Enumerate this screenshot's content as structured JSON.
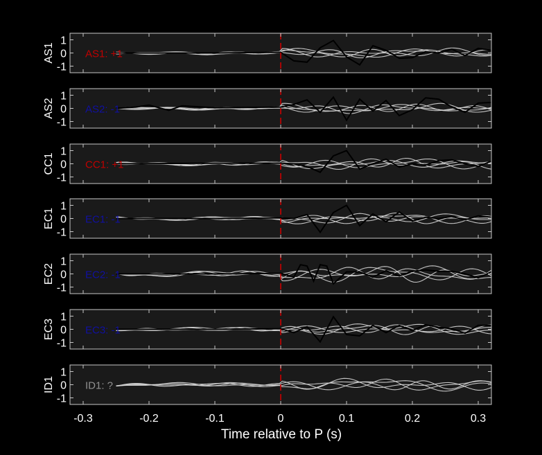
{
  "colors": {
    "background": "#000000",
    "axes_face": "#1a1a1a",
    "axes_edge": "#c8c8c8",
    "tick_text": "#ffffff",
    "trace_light": "#d8d8d8",
    "trace_dark": "#000000",
    "p_marker": "#cc0000",
    "label_positive": "#c00000",
    "label_negative": "#1010a0",
    "label_unknown": "#909090"
  },
  "chart_data": {
    "type": "line",
    "xlabel": "Time relative to P (s)",
    "xlim": [
      -0.32,
      0.32
    ],
    "ylim": [
      -1.5,
      1.5
    ],
    "x_ticks": [
      -0.3,
      -0.2,
      -0.1,
      0,
      0.1,
      0.2,
      0.3
    ],
    "x_tick_labels": [
      "-0.3",
      "-0.2",
      "-0.1",
      "0",
      "0.1",
      "0.2",
      "0.3"
    ],
    "y_ticks": [
      1,
      0,
      -1
    ],
    "y_tick_labels": [
      "1",
      "0",
      "-1"
    ],
    "p_marker_x": 0,
    "trace_start_x": -0.25,
    "panels": [
      {
        "station": "AS1",
        "label": "AS1: +1",
        "polarity": "positive",
        "dark_x": [
          -0.25,
          -0.1,
          0,
          0.02,
          0.04,
          0.06,
          0.08,
          0.1,
          0.12,
          0.14,
          0.16,
          0.18,
          0.2,
          0.22,
          0.24,
          0.26,
          0.28,
          0.3,
          0.32
        ],
        "dark_y": [
          0,
          0,
          0.05,
          -0.6,
          -0.7,
          0.4,
          0.95,
          -0.3,
          -0.9,
          0.55,
          0.2,
          -0.4,
          -0.35,
          0.1,
          0.0,
          0.3,
          -0.2,
          0.35,
          0.2
        ],
        "light_amp": 0.35
      },
      {
        "station": "AS2",
        "label": "AS2: -1",
        "polarity": "negative",
        "dark_x": [
          -0.25,
          -0.22,
          -0.2,
          -0.17,
          -0.15,
          -0.1,
          0,
          0.02,
          0.04,
          0.06,
          0.08,
          0.1,
          0.12,
          0.14,
          0.16,
          0.18,
          0.2,
          0.22,
          0.24,
          0.26,
          0.28,
          0.3,
          0.32
        ],
        "dark_y": [
          0,
          0.1,
          0.25,
          -0.15,
          0.2,
          0.05,
          0.1,
          0.3,
          0.65,
          -0.3,
          0.85,
          -0.9,
          0.7,
          -0.2,
          0.6,
          -0.55,
          -0.1,
          0.8,
          0.7,
          0.1,
          -0.3,
          0.4,
          0.45
        ],
        "light_amp": 0.35
      },
      {
        "station": "CC1",
        "label": "CC1: +1",
        "polarity": "positive",
        "dark_x": [
          -0.25,
          -0.1,
          0,
          0.02,
          0.04,
          0.06,
          0.08,
          0.1,
          0.12,
          0.14,
          0.16,
          0.18,
          0.2,
          0.22,
          0.24,
          0.26,
          0.28,
          0.3,
          0.32
        ],
        "dark_y": [
          0,
          0.05,
          0.05,
          0.0,
          -0.2,
          -0.65,
          0.6,
          1.0,
          -0.4,
          0.0,
          0.35,
          -0.25,
          0.0,
          -0.1,
          0.25,
          0.3,
          0.0,
          -0.2,
          0.2
        ],
        "light_amp": 0.4
      },
      {
        "station": "EC1",
        "label": "EC1: -1",
        "polarity": "negative",
        "dark_x": [
          -0.25,
          -0.1,
          0,
          0.02,
          0.04,
          0.06,
          0.08,
          0.1,
          0.12,
          0.14,
          0.16,
          0.18,
          0.2,
          0.22,
          0.24,
          0.26,
          0.28,
          0.3,
          0.32
        ],
        "dark_y": [
          0,
          0,
          0.05,
          0.0,
          0.3,
          -1.05,
          0.45,
          1.0,
          -0.55,
          0.35,
          -0.25,
          0.5,
          -0.2,
          0.1,
          0.0,
          0.15,
          -0.1,
          0.2,
          0.1
        ],
        "light_amp": 0.4
      },
      {
        "station": "EC2",
        "label": "EC2: -1",
        "polarity": "negative",
        "dark_x": [
          -0.25,
          -0.1,
          0,
          0.02,
          0.03,
          0.04,
          0.05,
          0.06,
          0.07,
          0.08,
          0.1,
          0.12,
          0.14,
          0.16,
          0.18,
          0.2,
          0.22,
          0.24,
          0.26,
          0.28,
          0.3,
          0.32
        ],
        "dark_y": [
          0,
          0,
          0.05,
          -0.25,
          0.7,
          0.6,
          -0.55,
          0.7,
          0.6,
          -0.75,
          0.15,
          0.15,
          -0.25,
          0.25,
          -0.15,
          0.2,
          0.3,
          0.2,
          0.2,
          0.0,
          -0.3,
          0.15
        ],
        "light_amp": 0.6
      },
      {
        "station": "EC3",
        "label": "EC3: -1",
        "polarity": "negative",
        "dark_x": [
          -0.25,
          -0.1,
          0,
          0.02,
          0.04,
          0.06,
          0.08,
          0.1,
          0.12,
          0.14,
          0.16,
          0.18,
          0.2,
          0.22,
          0.24,
          0.26,
          0.28,
          0.3,
          0.32
        ],
        "dark_y": [
          0,
          0,
          0.05,
          -0.25,
          0.2,
          -0.95,
          0.95,
          -0.4,
          -0.5,
          0.3,
          -0.25,
          0.3,
          -0.1,
          0.35,
          0.15,
          0.05,
          -0.3,
          0.3,
          0.3
        ],
        "light_amp": 0.4
      },
      {
        "station": "ID1",
        "label": "ID1: ?",
        "polarity": "unknown",
        "dark_x": [],
        "dark_y": [],
        "light_amp": 0.45
      }
    ]
  }
}
